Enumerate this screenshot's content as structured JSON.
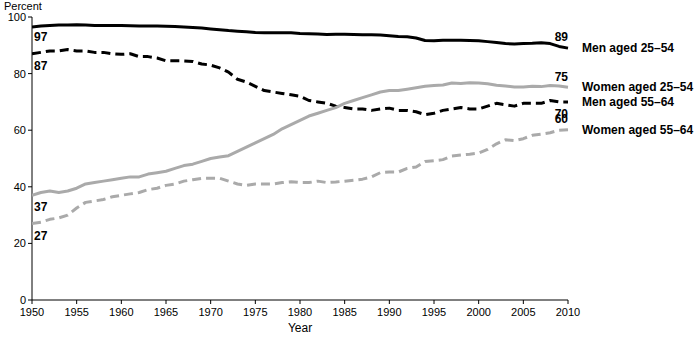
{
  "chart_data": {
    "type": "line",
    "y_label": "Percent",
    "x_label": "Year",
    "x": [
      1950,
      1951,
      1952,
      1953,
      1954,
      1955,
      1956,
      1957,
      1958,
      1959,
      1960,
      1961,
      1962,
      1963,
      1964,
      1965,
      1966,
      1967,
      1968,
      1969,
      1970,
      1971,
      1972,
      1973,
      1974,
      1975,
      1976,
      1977,
      1978,
      1979,
      1980,
      1981,
      1982,
      1983,
      1984,
      1985,
      1986,
      1987,
      1988,
      1989,
      1990,
      1991,
      1992,
      1993,
      1994,
      1995,
      1996,
      1997,
      1998,
      1999,
      2000,
      2001,
      2002,
      2003,
      2004,
      2005,
      2006,
      2007,
      2008,
      2009,
      2010
    ],
    "series": [
      {
        "name": "Men aged 25–54",
        "color": "#000000",
        "line_style": "solid",
        "values": [
          96.5,
          96.8,
          97,
          97.2,
          97.2,
          97.3,
          97.2,
          97,
          97,
          97,
          97,
          96.9,
          96.8,
          96.8,
          96.8,
          96.7,
          96.6,
          96.5,
          96.3,
          96.1,
          95.8,
          95.5,
          95.2,
          95,
          94.8,
          94.5,
          94.4,
          94.4,
          94.4,
          94.4,
          94.2,
          94.1,
          94,
          93.8,
          93.9,
          93.9,
          93.8,
          93.7,
          93.7,
          93.6,
          93.4,
          93.1,
          93,
          92.6,
          91.7,
          91.6,
          91.8,
          91.8,
          91.8,
          91.7,
          91.6,
          91.3,
          91,
          90.6,
          90.5,
          90.6,
          90.7,
          90.9,
          90.6,
          89.6,
          89
        ]
      },
      {
        "name": "Men aged 55–64",
        "color": "#000000",
        "line_style": "dashed",
        "values": [
          87,
          87.5,
          88,
          88,
          88.5,
          88,
          88,
          87.5,
          87.5,
          87,
          86.8,
          87,
          86,
          86,
          85.5,
          84.5,
          84.5,
          84.5,
          84.3,
          83.4,
          83,
          82,
          80.5,
          78,
          77,
          75.5,
          74,
          73.5,
          73,
          72.5,
          72,
          70.5,
          70,
          69.5,
          68.5,
          68,
          67.5,
          67.5,
          67,
          67.5,
          67.8,
          67,
          67,
          66.5,
          65.5,
          66,
          67,
          67.5,
          68,
          67.5,
          67.5,
          68.5,
          69.5,
          69,
          68.5,
          69.5,
          69.5,
          69.5,
          70.5,
          70,
          70
        ]
      },
      {
        "name": "Women aged 25–54",
        "color": "#aaaaaa",
        "line_style": "solid",
        "values": [
          37,
          38,
          38.5,
          38,
          38.5,
          39.5,
          41,
          41.5,
          42,
          42.5,
          43,
          43.5,
          43.5,
          44.5,
          45,
          45.5,
          46.5,
          47.5,
          48,
          49,
          50,
          50.5,
          51,
          52.5,
          54,
          55.5,
          57,
          58.5,
          60.5,
          62,
          63.5,
          65,
          66,
          67,
          68,
          69.5,
          70.5,
          71.5,
          72.5,
          73.5,
          74,
          74,
          74.5,
          75,
          75.5,
          75.8,
          76,
          76.7,
          76.5,
          76.8,
          76.7,
          76.4,
          75.9,
          75.6,
          75.3,
          75.3,
          75.5,
          75.4,
          75.8,
          75.6,
          75.2
        ]
      },
      {
        "name": "Women aged 55–64",
        "color": "#aaaaaa",
        "line_style": "dashed",
        "values": [
          27,
          27.5,
          28.5,
          29,
          30,
          32.5,
          34.5,
          35,
          35.5,
          36.5,
          37,
          37.5,
          38,
          39,
          39.5,
          40.5,
          41,
          42,
          42.5,
          43,
          43,
          43,
          42,
          41,
          40.5,
          41,
          41,
          41,
          41.5,
          41.8,
          41.5,
          41.5,
          42,
          41.5,
          41.7,
          42,
          42.3,
          42.7,
          43.5,
          45,
          45.2,
          45.2,
          46.5,
          47,
          48.9,
          49.2,
          49.6,
          50.9,
          51.2,
          51.5,
          51.9,
          53.2,
          55.2,
          56.6,
          56.3,
          57,
          58.2,
          58.6,
          59.1,
          60,
          60.2
        ]
      }
    ],
    "annotations": [
      {
        "text": "97",
        "x": 1950,
        "y": 97
      },
      {
        "text": "87",
        "x": 1950,
        "y": 87
      },
      {
        "text": "37",
        "x": 1950,
        "y": 37
      },
      {
        "text": "27",
        "x": 1950,
        "y": 27
      },
      {
        "text": "89",
        "x": 2010,
        "y": 89
      },
      {
        "text": "75",
        "x": 2010,
        "y": 75
      },
      {
        "text": "70",
        "x": 2010,
        "y": 70
      },
      {
        "text": "60",
        "x": 2010,
        "y": 60
      }
    ],
    "xlim": [
      1950,
      2010
    ],
    "xticks": [
      1950,
      1955,
      1960,
      1965,
      1970,
      1975,
      1980,
      1985,
      1990,
      1995,
      2000,
      2005,
      2010
    ],
    "ylim": [
      0,
      100
    ],
    "yticks": [
      0,
      20,
      40,
      60,
      80,
      100
    ],
    "grid": false
  }
}
